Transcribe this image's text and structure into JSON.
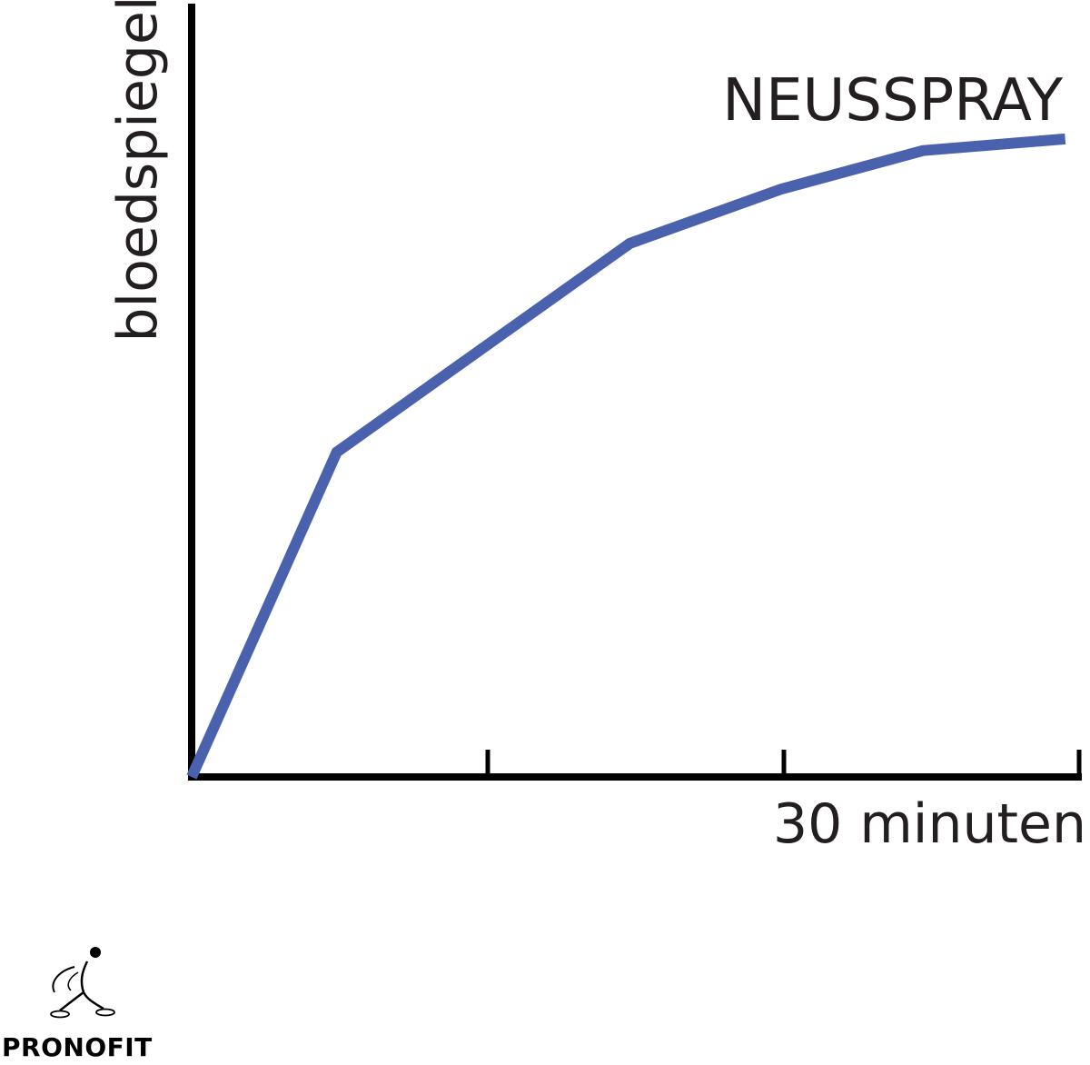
{
  "chart_data": {
    "type": "line",
    "title": "NEUSSPRAY",
    "xlabel": "30 minuten",
    "ylabel": "bloedspiegel",
    "xlim": [
      0,
      30
    ],
    "ylim": [
      0,
      100
    ],
    "x_ticks": [
      10,
      20,
      30
    ],
    "grid": false,
    "legend": "none",
    "series": [
      {
        "x": [
          0,
          4.9,
          14.8,
          19.9,
          24.7,
          29.5
        ],
        "y": [
          0,
          42,
          69,
          76,
          81,
          82.5
        ]
      }
    ],
    "colors": {
      "line": "#4a62ad",
      "axis": "#000000",
      "text": "#231f20"
    }
  },
  "logo": {
    "text": "PRONOFIT",
    "icon": "skater-icon"
  }
}
